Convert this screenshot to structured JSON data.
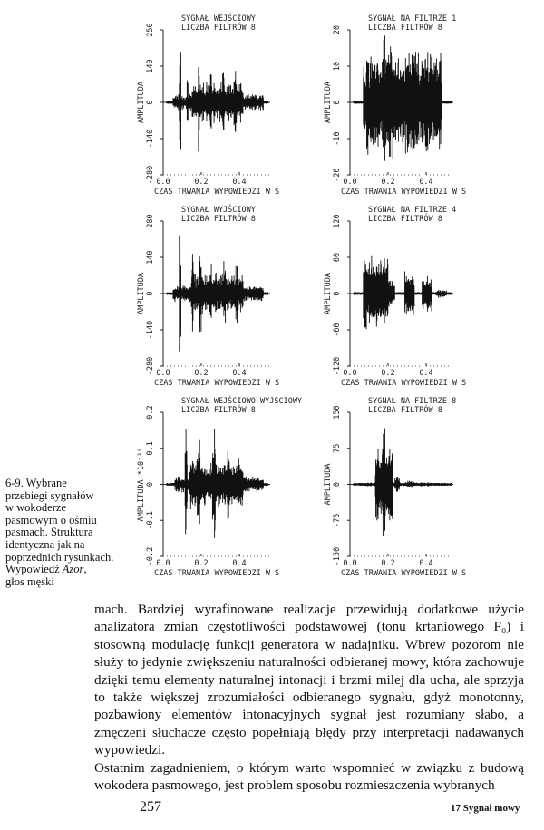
{
  "panels": [
    {
      "title1": "SYGNAŁ WEJŚCIOWY",
      "title2": "LICZBA FILTRÓW 8",
      "ylabel": "AMPLITUDA",
      "yticks": [
        "250",
        "140",
        "0",
        "-140",
        "-280"
      ],
      "xticks": [
        "0.0",
        "0.2",
        "0.4"
      ],
      "xlabel": "CZAS TRWANIA WYPOWIEDZI W S"
    },
    {
      "title1": "SYGNAŁ NA FILTRZE 1",
      "title2": "LICZBA FILTRÓW 8",
      "ylabel": "AMPLITUDA",
      "yticks": [
        "20",
        "10",
        "0",
        "-10",
        "-20"
      ],
      "xticks": [
        "0.0",
        "0.2",
        "0.4"
      ],
      "xlabel": "CZAS TRWANIA WYPOWIEDZI W S"
    },
    {
      "title1": "SYGNAŁ WYJŚCIOWY",
      "title2": "LICZBA FILTRÓW 8",
      "ylabel": "AMPLITUDA",
      "yticks": [
        "280",
        "140",
        "0",
        "-140",
        "-280"
      ],
      "xticks": [
        "0.0",
        "0.2",
        "0.4"
      ],
      "xlabel": "CZAS TRWANIA WYPOWIEDZI W S"
    },
    {
      "title1": "SYGNAŁ NA FILTRZE 4",
      "title2": "LICZBA FILTRÓW 8",
      "ylabel": "AMPLITUDA",
      "yticks": [
        "120",
        "60",
        "0",
        "-60",
        "-120"
      ],
      "xticks": [
        "0.0",
        "0.2",
        "0.4"
      ],
      "xlabel": "CZAS TRWANIA WYPOWIEDZI W S"
    },
    {
      "title1": "SYGNAŁ WEJŚCIOWO-WYJŚCIOWY",
      "title2": "LICZBA FILTRÓW 8",
      "ylabel": "AMPLITUDA *10⁻¹⁰",
      "yticks": [
        "0.2",
        "0.1",
        "0",
        "-0.1",
        "-0.2"
      ],
      "xticks": [
        "0.0",
        "0.2",
        "0.4"
      ],
      "xlabel": "CZAS TRWANIA WYPOWIEDZI W S"
    },
    {
      "title1": "SYGNAŁ NA FILTRZE 8",
      "title2": "LICZBA FILTRÓW 8",
      "ylabel": "AMPLITUDA",
      "yticks": [
        "150",
        "75",
        "0",
        "-75",
        "-150"
      ],
      "xticks": [
        "0.0",
        "0.2",
        "0.4"
      ],
      "xlabel": "CZAS TRWANIA WYPOWIEDZI W S"
    }
  ],
  "caption": {
    "lines": [
      "6-9. Wybrane",
      "przebiegi sygnałów",
      "w wokoderze",
      "pasmowym o ośmiu",
      "pasmach. Struktura",
      "identyczna jak na",
      "poprzednich rysunkach.",
      "Wypowiedź ",
      "głos męski"
    ],
    "italic_word": "Azor"
  },
  "body": {
    "paragraph1": "mach. Bardziej wyrafinowane realizacje przewidują dodatkowe użycie analizatora zmian częstotliwości podstawowej (tonu krtaniowego F₀) i stosowną modulację funkcji generatora w nadajniku. Wbrew pozorom nie służy to jedynie zwiększeniu naturalności odbieranej mowy, która zachowuje dzięki temu elementy naturalnej intonacji i brzmi milej dla ucha, ale sprzyja to także większej zrozumiałości odbieranego sygnału, gdyż monotonny, pozbawiony elementów intonacyjnych sygnał jest rozumiany słabo, a zmęczeni słuchacze często popełniają błędy przy interpretacji nadawanych wypowiedzi.",
    "paragraph2": "Ostatnim zagadnieniem, o którym warto wspomnieć w związku z budową wokodera pasmowego, jest problem sposobu rozmieszczenia wybranych"
  },
  "footer": {
    "page_number": "257",
    "running_head": "17  Sygnał mowy"
  }
}
